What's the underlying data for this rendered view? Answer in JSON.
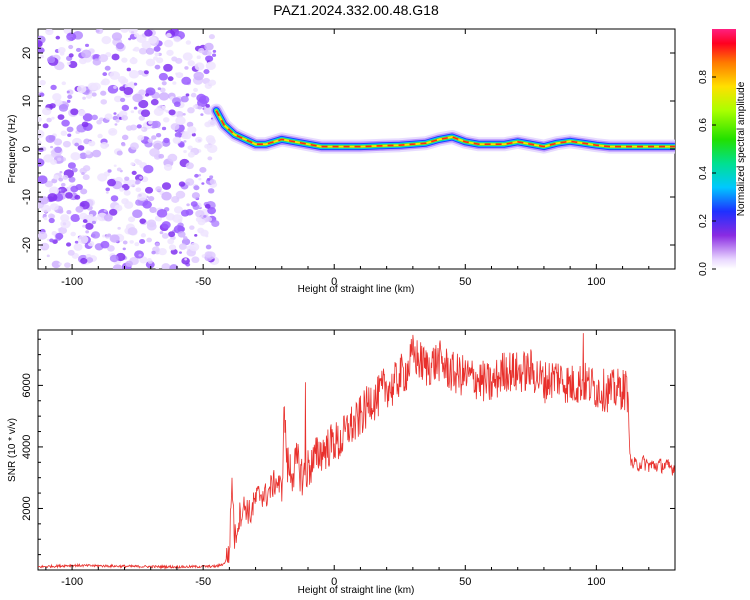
{
  "title": "PAZ1.2024.332.00.48.G18",
  "chart_data": [
    {
      "type": "heatmap",
      "xlabel": "Height of straight line (km)",
      "ylabel": "Frequency (Hz)",
      "xlim": [
        -113,
        130
      ],
      "ylim": [
        -25,
        25
      ],
      "x_ticks": [
        -100,
        -50,
        0,
        50,
        100
      ],
      "y_ticks": [
        -20,
        -10,
        0,
        10,
        20
      ],
      "colorbar": {
        "label": "Normalized spectral amplitude",
        "ticks": [
          0.0,
          0.2,
          0.4,
          0.6,
          0.8
        ],
        "range": [
          0,
          1
        ],
        "colormap": "rainbow-white-to-magenta"
      },
      "noise_region_x": [
        -113,
        -45
      ],
      "ridge": {
        "x": [
          -45,
          -42,
          -38,
          -34,
          -30,
          -26,
          -20,
          -15,
          -10,
          -5,
          0,
          5,
          10,
          15,
          20,
          25,
          30,
          35,
          40,
          45,
          50,
          55,
          60,
          65,
          70,
          75,
          80,
          85,
          90,
          95,
          100,
          105,
          110,
          115,
          120,
          125,
          130
        ],
        "y": [
          8.0,
          5.0,
          3.0,
          2.0,
          1.0,
          1.0,
          2.0,
          1.5,
          1.0,
          0.5,
          0.5,
          0.5,
          0.5,
          0.6,
          0.7,
          0.8,
          1.0,
          1.2,
          2.0,
          2.5,
          1.5,
          1.0,
          1.0,
          1.0,
          1.5,
          1.0,
          0.5,
          1.2,
          1.6,
          1.2,
          0.8,
          0.5,
          0.5,
          0.5,
          0.5,
          0.5,
          0.5
        ]
      }
    },
    {
      "type": "line",
      "xlabel": "Height of straight line (km)",
      "ylabel": "SNR (10 * v/v)",
      "xlim": [
        -113,
        130
      ],
      "ylim": [
        0,
        7800
      ],
      "x_ticks": [
        -100,
        -50,
        0,
        50,
        100
      ],
      "y_ticks": [
        2000,
        4000,
        6000
      ],
      "series": [
        {
          "color": "#e8302c",
          "x": [
            -113,
            -100,
            -80,
            -60,
            -45,
            -42,
            -40,
            -39,
            -38,
            -36,
            -34,
            -32,
            -30,
            -28,
            -26,
            -24,
            -22,
            -20,
            -19,
            -18,
            -16,
            -14,
            -12,
            -10,
            -8,
            -6,
            -4,
            -2,
            0,
            2,
            4,
            6,
            8,
            10,
            12,
            14,
            16,
            18,
            20,
            22,
            25,
            28,
            30,
            35,
            40,
            45,
            50,
            55,
            60,
            65,
            70,
            75,
            80,
            85,
            90,
            95,
            100,
            105,
            110,
            112,
            113,
            115,
            118,
            120,
            125,
            130
          ],
          "y": [
            100,
            150,
            120,
            100,
            120,
            200,
            600,
            3000,
            1000,
            1800,
            2100,
            1800,
            2300,
            2500,
            2400,
            2700,
            2900,
            2600,
            5200,
            3400,
            3200,
            3500,
            3000,
            3300,
            3500,
            3800,
            3900,
            4000,
            4200,
            4100,
            4400,
            4700,
            4700,
            5000,
            5200,
            5600,
            5500,
            5800,
            6000,
            5900,
            6300,
            6500,
            7000,
            6600,
            6800,
            6400,
            6300,
            6200,
            6000,
            6500,
            6400,
            6500,
            6100,
            6300,
            6000,
            6100,
            5900,
            5800,
            5900,
            5800,
            3500,
            3400,
            3500,
            3400,
            3400,
            3300
          ]
        }
      ],
      "spikes": [
        {
          "x": -39,
          "y": 3000
        },
        {
          "x": -19,
          "y": 5300
        },
        {
          "x": -11,
          "y": 6100
        },
        {
          "x": 95,
          "y": 7700
        }
      ]
    }
  ]
}
